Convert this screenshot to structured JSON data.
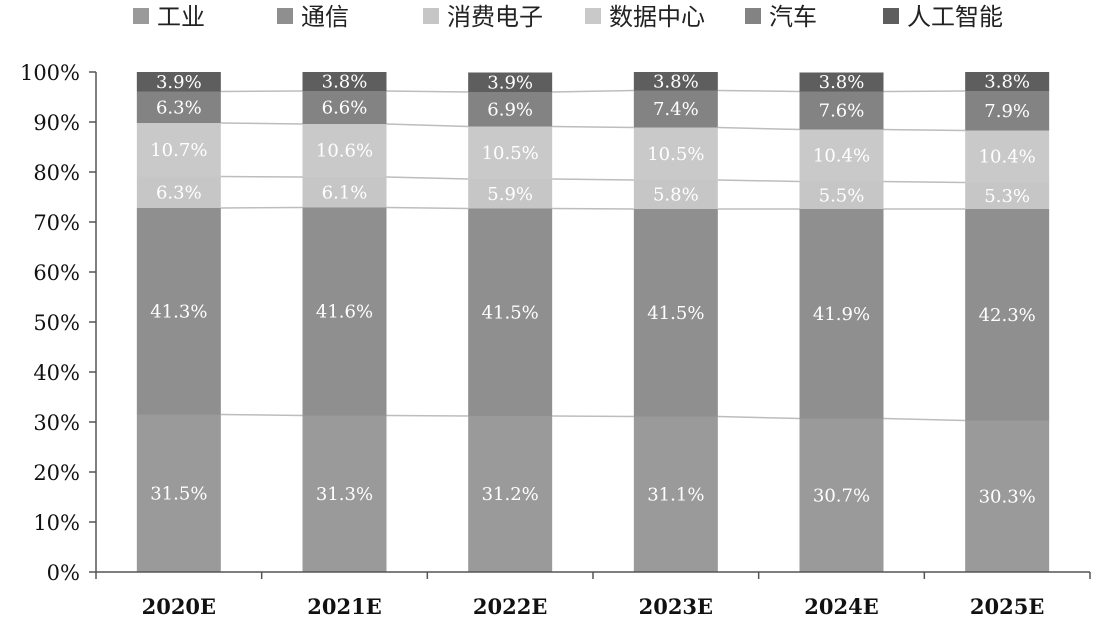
{
  "chart_data": {
    "type": "bar",
    "stacked": true,
    "percent_stacked": true,
    "categories": [
      "2020E",
      "2021E",
      "2022E",
      "2023E",
      "2024E",
      "2025E"
    ],
    "series": [
      {
        "name": "工业",
        "color": "#9a9a9a",
        "values": [
          31.5,
          31.3,
          31.2,
          31.1,
          30.7,
          30.3
        ],
        "labels": [
          "31.5%",
          "31.3%",
          "31.2%",
          "31.1%",
          "30.7%",
          "30.3%"
        ]
      },
      {
        "name": "通信",
        "color": "#8f8f8f",
        "values": [
          41.3,
          41.6,
          41.5,
          41.5,
          41.9,
          42.3
        ],
        "labels": [
          "41.3%",
          "41.6%",
          "41.5%",
          "41.5%",
          "41.9%",
          "42.3%"
        ]
      },
      {
        "name": "消费电子",
        "color": "#c6c6c6",
        "values": [
          6.3,
          6.1,
          5.9,
          5.8,
          5.5,
          5.3
        ],
        "labels": [
          "6.3%",
          "6.1%",
          "5.9%",
          "5.8%",
          "5.5%",
          "5.3%"
        ]
      },
      {
        "name": "数据中心",
        "color": "#c9c9c9",
        "values": [
          10.7,
          10.6,
          10.5,
          10.5,
          10.4,
          10.4
        ],
        "labels": [
          "10.7%",
          "10.6%",
          "10.5%",
          "10.5%",
          "10.4%",
          "10.4%"
        ]
      },
      {
        "name": "汽车",
        "color": "#838383",
        "values": [
          6.3,
          6.6,
          6.9,
          7.4,
          7.6,
          7.9
        ],
        "labels": [
          "6.3%",
          "6.6%",
          "6.9%",
          "7.4%",
          "7.6%",
          "7.9%"
        ]
      },
      {
        "name": "人工智能",
        "color": "#5e5e5e",
        "values": [
          3.9,
          3.8,
          3.9,
          3.8,
          3.8,
          3.8
        ],
        "labels": [
          "3.9%",
          "3.8%",
          "3.9%",
          "3.8%",
          "3.8%",
          "3.8%"
        ]
      }
    ],
    "ylim": [
      0,
      100
    ],
    "yticks": [
      0,
      10,
      20,
      30,
      40,
      50,
      60,
      70,
      80,
      90,
      100
    ],
    "ytick_labels": [
      "0%",
      "10%",
      "20%",
      "30%",
      "40%",
      "50%",
      "60%",
      "70%",
      "80%",
      "90%",
      "100%"
    ],
    "legend_position": "top",
    "grid": false,
    "series_lines": true
  }
}
